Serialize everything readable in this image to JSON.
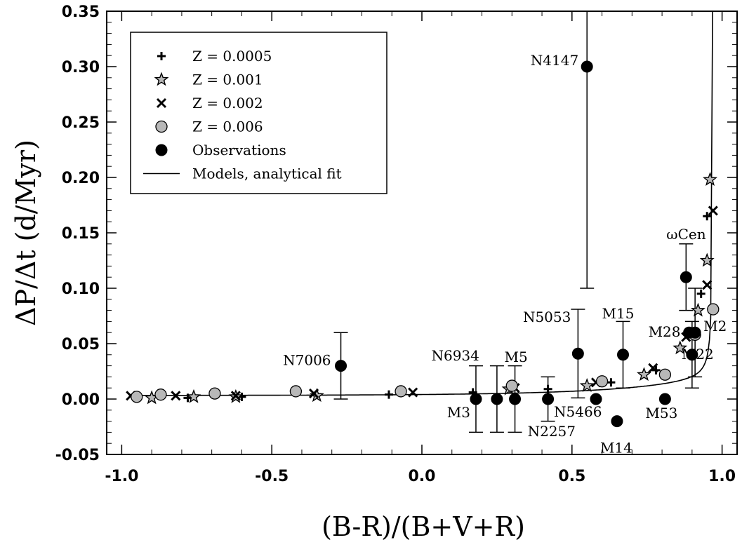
{
  "chart_data": {
    "type": "scatter",
    "xlabel": "(B-R)/(B+V+R)",
    "ylabel": "ΔP/Δt (d/Myr)",
    "xlim": [
      -1.05,
      1.05
    ],
    "ylim": [
      -0.05,
      0.35
    ],
    "x_ticks": [
      -1.0,
      -0.5,
      0.0,
      0.5,
      1.0
    ],
    "x_tick_labels": [
      "-1.0",
      "-0.5",
      "0.0",
      "0.5",
      "1.0"
    ],
    "y_ticks": [
      -0.05,
      0.0,
      0.05,
      0.1,
      0.15,
      0.2,
      0.25,
      0.3,
      0.35
    ],
    "y_tick_labels": [
      "-0.05",
      "0.00",
      "0.05",
      "0.10",
      "0.15",
      "0.20",
      "0.25",
      "0.30",
      "0.35"
    ],
    "grid": false,
    "legend_position": "top-left",
    "legend": [
      {
        "label": "Z = 0.0005",
        "marker": "plus"
      },
      {
        "label": "Z = 0.001",
        "marker": "star"
      },
      {
        "label": "Z = 0.002",
        "marker": "cross"
      },
      {
        "label": "Z = 0.006",
        "marker": "gray-circle"
      },
      {
        "label": "Observations",
        "marker": "black-circle"
      },
      {
        "label": "Models, analytical fit",
        "marker": "line"
      }
    ],
    "series": [
      {
        "name": "Z = 0.0005",
        "marker": "plus",
        "x": [
          -0.78,
          -0.6,
          -0.11,
          0.17,
          0.42,
          0.63,
          0.78,
          0.93,
          0.95
        ],
        "y": [
          0.001,
          0.002,
          0.004,
          0.006,
          0.009,
          0.015,
          0.026,
          0.095,
          0.165
        ]
      },
      {
        "name": "Z = 0.001",
        "marker": "star",
        "x": [
          -0.9,
          -0.76,
          -0.62,
          -0.35,
          0.29,
          0.55,
          0.74,
          0.86,
          0.92,
          0.95,
          0.96
        ],
        "y": [
          0.001,
          0.002,
          0.002,
          0.003,
          0.009,
          0.012,
          0.022,
          0.046,
          0.08,
          0.125,
          0.198
        ]
      },
      {
        "name": "Z = 0.002",
        "marker": "cross",
        "x": [
          -0.97,
          -0.82,
          -0.62,
          -0.36,
          -0.03,
          0.31,
          0.58,
          0.77,
          0.88,
          0.95,
          0.97
        ],
        "y": [
          0.003,
          0.003,
          0.003,
          0.005,
          0.006,
          0.01,
          0.015,
          0.028,
          0.056,
          0.103,
          0.17
        ]
      },
      {
        "name": "Z = 0.006",
        "marker": "gray-circle",
        "x": [
          -0.95,
          -0.87,
          -0.69,
          -0.42,
          -0.07,
          0.3,
          0.6,
          0.81,
          0.91,
          0.97
        ],
        "y": [
          0.002,
          0.004,
          0.005,
          0.007,
          0.007,
          0.012,
          0.016,
          0.022,
          0.058,
          0.081
        ]
      },
      {
        "name": "Observations",
        "marker": "black-circle",
        "points": [
          {
            "label": "N4147",
            "x": 0.55,
            "y": 0.3,
            "err_lo": 0.1,
            "err_hi": 0.35
          },
          {
            "label": "N7006",
            "x": -0.27,
            "y": 0.03,
            "err_lo": 0.0,
            "err_hi": 0.06
          },
          {
            "label": "M3",
            "x": 0.18,
            "y": 0.0,
            "err_lo": -0.03,
            "err_hi": 0.03
          },
          {
            "label": "N6934",
            "x": 0.25,
            "y": 0.0,
            "err_lo": -0.03,
            "err_hi": 0.03
          },
          {
            "label": "M5",
            "x": 0.31,
            "y": 0.0,
            "err_lo": -0.03,
            "err_hi": 0.03
          },
          {
            "label": "N2257",
            "x": 0.42,
            "y": 0.0,
            "err_lo": -0.02,
            "err_hi": 0.02
          },
          {
            "label": "N5053",
            "x": 0.52,
            "y": 0.041,
            "err_lo": 0.001,
            "err_hi": 0.081
          },
          {
            "label": "N5466",
            "x": 0.58,
            "y": 0.0,
            "err_lo": null,
            "err_hi": null
          },
          {
            "label": "M14",
            "x": 0.65,
            "y": -0.02,
            "err_lo": null,
            "err_hi": null
          },
          {
            "label": "M15",
            "x": 0.67,
            "y": 0.04,
            "err_lo": 0.01,
            "err_hi": 0.07
          },
          {
            "label": "M53",
            "x": 0.81,
            "y": 0.0,
            "err_lo": null,
            "err_hi": null
          },
          {
            "label": "ωCen",
            "x": 0.88,
            "y": 0.11,
            "err_lo": 0.08,
            "err_hi": 0.14
          },
          {
            "label": "M28",
            "x": 0.89,
            "y": 0.06,
            "err_lo": null,
            "err_hi": null
          },
          {
            "label": "M22",
            "x": 0.9,
            "y": 0.04,
            "err_lo": 0.01,
            "err_hi": 0.07
          },
          {
            "label": "M2",
            "x": 0.91,
            "y": 0.06,
            "err_lo": 0.02,
            "err_hi": 0.1
          }
        ]
      }
    ],
    "fit_curve": {
      "name": "Models, analytical fit",
      "x_start": -0.97,
      "x_end": 0.96,
      "y_min": 0.003
    }
  }
}
